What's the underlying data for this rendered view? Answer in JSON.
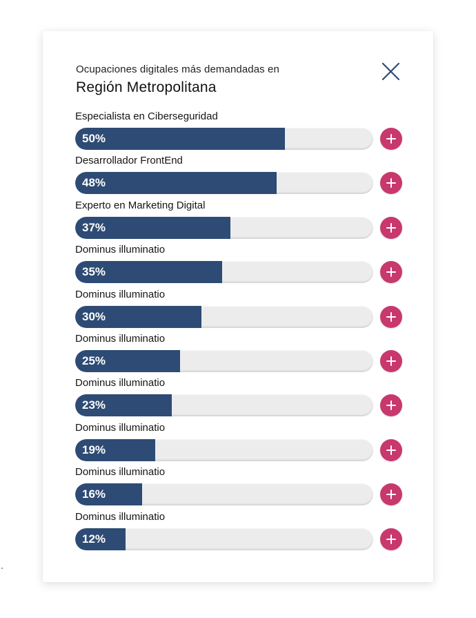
{
  "header": {
    "subtitle": "Ocupaciones digitales más demandadas en",
    "title": "Región Metropolitana",
    "close_icon": "close-icon"
  },
  "colors": {
    "bar_fill": "#2d4b74",
    "bar_track": "#ececec",
    "plus_button": "#c8386c",
    "close_icon": "#2d4b74"
  },
  "occupations": [
    {
      "label": "Especialista en Ciberseguridad",
      "percent_text": "50%",
      "value": 50
    },
    {
      "label": "Desarrollador FrontEnd",
      "percent_text": "48%",
      "value": 48
    },
    {
      "label": "Experto en Marketing Digital",
      "percent_text": "37%",
      "value": 37
    },
    {
      "label": "Dominus illuminatio",
      "percent_text": "35%",
      "value": 35
    },
    {
      "label": "Dominus illuminatio",
      "percent_text": "30%",
      "value": 30
    },
    {
      "label": "Dominus illuminatio",
      "percent_text": "25%",
      "value": 25
    },
    {
      "label": "Dominus illuminatio",
      "percent_text": "23%",
      "value": 23
    },
    {
      "label": "Dominus illuminatio",
      "percent_text": "19%",
      "value": 19
    },
    {
      "label": "Dominus illuminatio",
      "percent_text": "16%",
      "value": 16
    },
    {
      "label": "Dominus illuminatio",
      "percent_text": "12%",
      "value": 12
    }
  ]
}
